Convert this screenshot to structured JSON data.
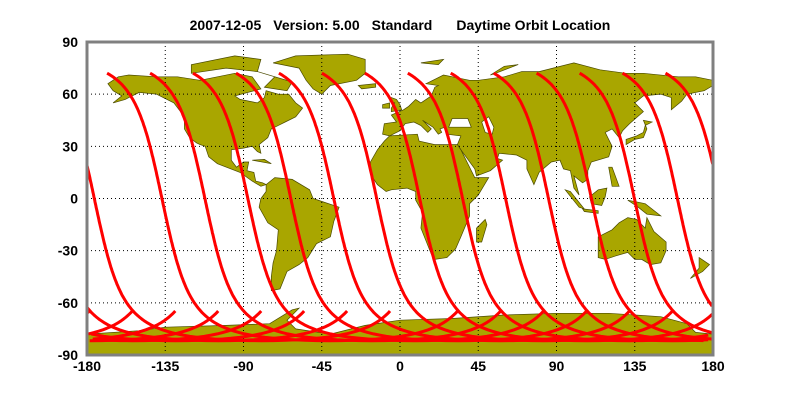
{
  "title": {
    "date": "2007-12-05",
    "version": "Version: 5.00",
    "product": "Standard",
    "description": "Daytime Orbit Location"
  },
  "chart_data": {
    "type": "map",
    "projection": "equirectangular",
    "xlim": [
      -180,
      180
    ],
    "ylim": [
      -90,
      90
    ],
    "x_ticks": [
      "-180",
      "-135",
      "-90",
      "-45",
      "0",
      "45",
      "90",
      "135",
      "180"
    ],
    "y_ticks": [
      "90",
      "60",
      "30",
      "0",
      "-30",
      "-60",
      "-90"
    ],
    "grid": true,
    "grid_style": "dotted",
    "orbit_tracks": {
      "count": 14,
      "equator_crossing_lon": [
        -136.9,
        -112.2,
        -87.5,
        -62.8,
        -38.1,
        -13.4,
        11.3,
        36.0,
        60.7,
        85.4,
        110.1,
        134.8,
        159.5,
        -175.8
      ],
      "lat_range_daytime": [
        72,
        -82
      ]
    },
    "colors": {
      "land": "#a9a600",
      "coast": "#4a4a00",
      "track": "#ff0000",
      "frame": "#808080",
      "grid": "#000000"
    }
  }
}
